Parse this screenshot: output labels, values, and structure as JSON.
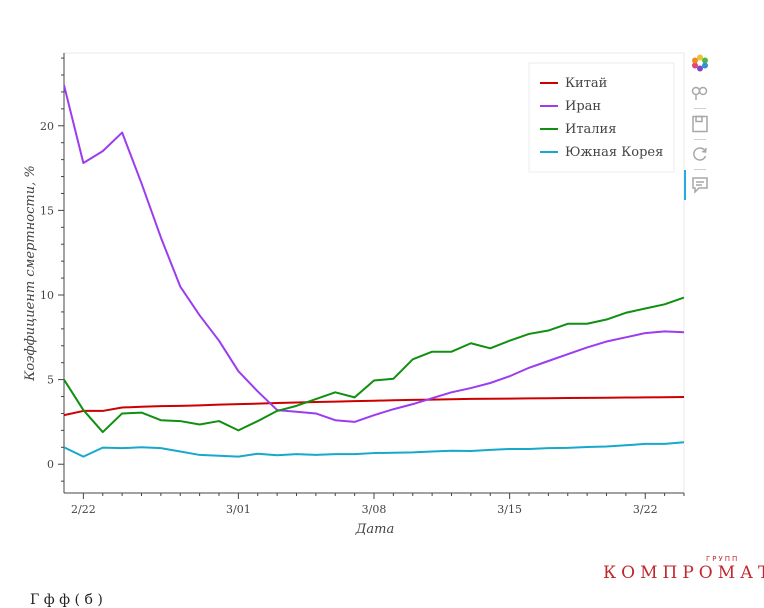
{
  "chart_data": {
    "type": "line",
    "xlabel": "Дата",
    "ylabel": "Коэффициент смертности, %",
    "x_ticks": [
      "2/22",
      "3/01",
      "3/08",
      "3/15",
      "3/22"
    ],
    "x_tick_days": [
      0,
      8,
      15,
      22,
      29
    ],
    "y_ticks": [
      "0",
      "5",
      "10",
      "15",
      "20"
    ],
    "y_tick_values": [
      0,
      5,
      10,
      15,
      20
    ],
    "xlim": [
      -1,
      31
    ],
    "ylim": [
      -1.7,
      24.3
    ],
    "grid": false,
    "legend_position": "top-right",
    "x_day_start": "2/21",
    "series": [
      {
        "name": "Китай",
        "color": "#cc0000",
        "values": [
          2.9,
          3.15,
          3.15,
          3.35,
          3.4,
          3.43,
          3.45,
          3.48,
          3.52,
          3.55,
          3.58,
          3.62,
          3.65,
          3.68,
          3.7,
          3.73,
          3.75,
          3.78,
          3.8,
          3.82,
          3.84,
          3.86,
          3.87,
          3.88,
          3.89,
          3.9,
          3.91,
          3.92,
          3.93,
          3.94,
          3.95,
          3.96,
          3.97,
          3.97
        ]
      },
      {
        "name": "Иран",
        "color": "#9b3cf0",
        "values": [
          22.4,
          17.8,
          18.5,
          19.6,
          16.6,
          13.4,
          10.5,
          8.8,
          7.3,
          5.5,
          4.3,
          3.2,
          3.1,
          3.0,
          2.6,
          2.5,
          2.9,
          3.25,
          3.55,
          3.9,
          4.25,
          4.5,
          4.8,
          5.2,
          5.7,
          6.1,
          6.5,
          6.9,
          7.25,
          7.5,
          7.75,
          7.85,
          7.8
        ]
      },
      {
        "name": "Италия",
        "color": "#108f10",
        "values": [
          5.0,
          3.2,
          1.9,
          3.0,
          3.05,
          2.6,
          2.55,
          2.35,
          2.55,
          2.0,
          2.55,
          3.15,
          3.45,
          3.85,
          4.25,
          3.95,
          4.95,
          5.05,
          6.2,
          6.65,
          6.65,
          7.15,
          6.85,
          7.3,
          7.7,
          7.9,
          8.3,
          8.3,
          8.55,
          8.95,
          9.2,
          9.45,
          9.85
        ]
      },
      {
        "name": "Южная Корея",
        "color": "#17a8cc",
        "values": [
          1.0,
          0.45,
          0.98,
          0.95,
          1.0,
          0.95,
          0.75,
          0.55,
          0.5,
          0.45,
          0.62,
          0.53,
          0.6,
          0.55,
          0.6,
          0.6,
          0.66,
          0.68,
          0.7,
          0.75,
          0.8,
          0.78,
          0.85,
          0.9,
          0.9,
          0.95,
          0.97,
          1.02,
          1.05,
          1.12,
          1.2,
          1.2,
          1.3
        ]
      }
    ]
  },
  "toolbar": {
    "icons": [
      "bokeh-logo-icon",
      "pan-icon",
      "save-icon",
      "reset-icon",
      "hover-icon"
    ]
  },
  "watermark": {
    "main": "КОМПРОМАТ",
    "top": "ГРУПП"
  },
  "caption": "Г    ф     ф                           (                                     б              )"
}
